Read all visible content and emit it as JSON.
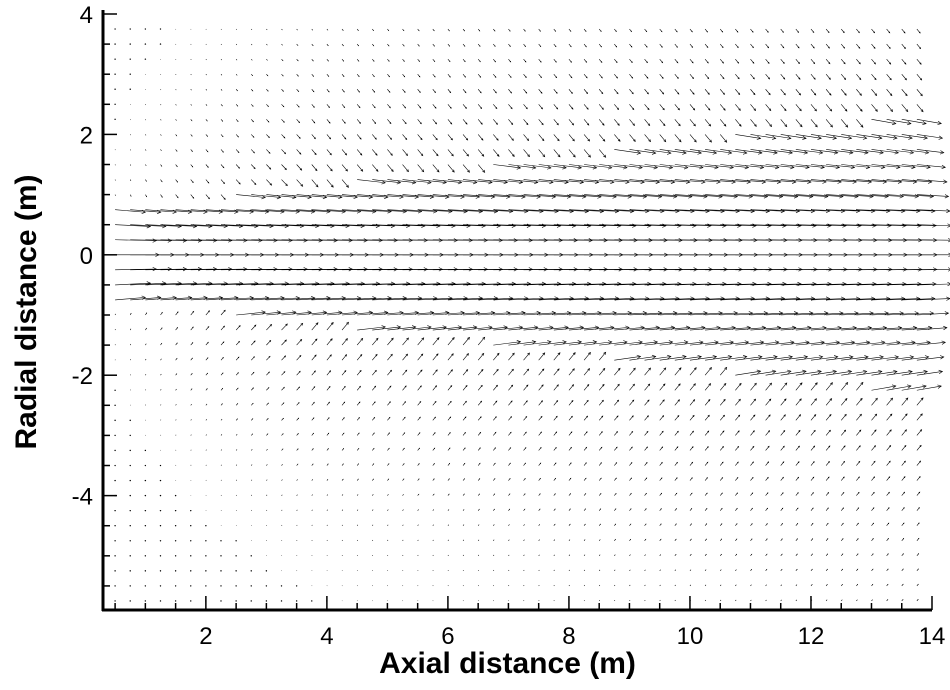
{
  "chart_data": {
    "type": "vector-field",
    "title": "",
    "xlabel": "Axial distance (m)",
    "ylabel": "Radial distance (m)",
    "xlim": [
      0.3,
      14
    ],
    "ylim": [
      -5.9,
      4
    ],
    "xticks": [
      2,
      4,
      6,
      8,
      10,
      12,
      14
    ],
    "yticks": [
      -4,
      -2,
      0,
      2,
      4
    ],
    "xtick_labels": [
      "2",
      "4",
      "6",
      "8",
      "10",
      "12",
      "14"
    ],
    "ytick_labels": [
      "-4",
      "-2",
      "0",
      "2",
      "4"
    ],
    "grid": false,
    "legend": "none",
    "vector_color": "#000000",
    "description_of_field": {
      "jet_inlet_x": 0.3,
      "jet_half_width_m": 0.75,
      "jet_axial_velocity_scale": "high near centerline, decaying downstream",
      "entrainment": "radial inflow toward axis outside jet"
    }
  }
}
